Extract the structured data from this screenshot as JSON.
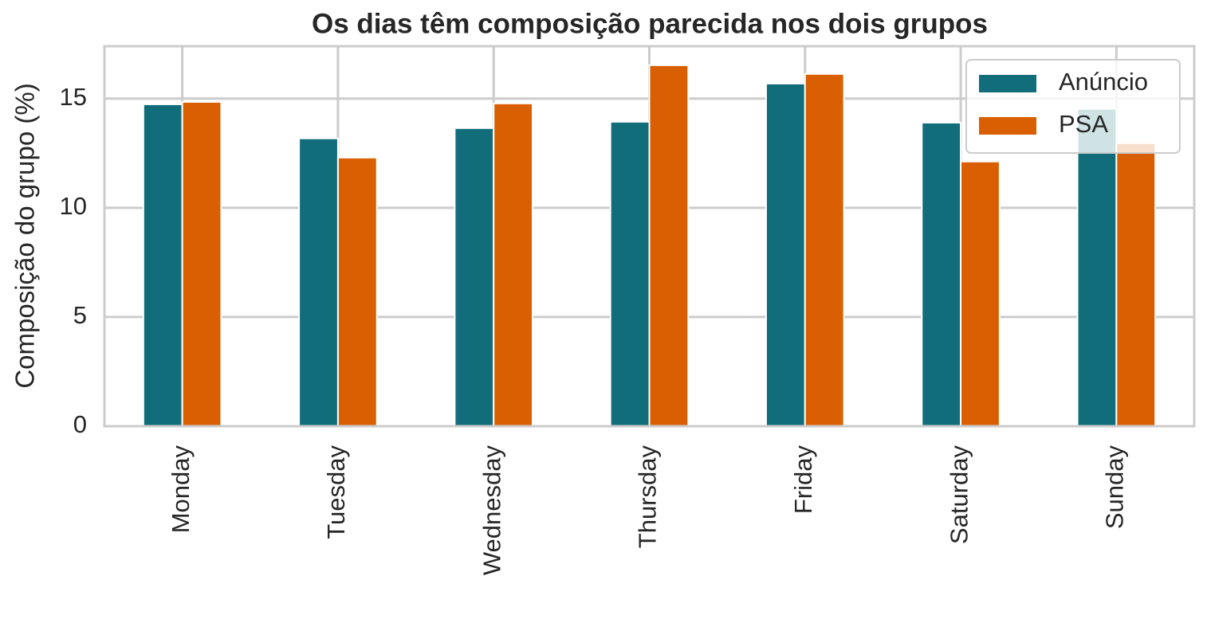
{
  "chart_data": {
    "type": "bar",
    "title": "Os dias têm composição parecida nos dois grupos",
    "y_label": "Composição do grupo (%)",
    "categories": [
      "Monday",
      "Tuesday",
      "Wednesday",
      "Thursday",
      "Friday",
      "Saturday",
      "Sunday"
    ],
    "series": [
      {
        "name": "Anúncio",
        "color": "#116d7a",
        "values": [
          14.74,
          13.18,
          13.65,
          13.94,
          15.69,
          13.9,
          14.53
        ]
      },
      {
        "name": "PSA",
        "color": "#d95f02",
        "values": [
          14.85,
          12.3,
          14.78,
          16.53,
          16.13,
          12.12,
          12.96
        ]
      }
    ],
    "ylim": [
      0,
      17.4
    ],
    "yticks": [
      0,
      5,
      10,
      15
    ],
    "grid": true,
    "legend": "upper right"
  }
}
